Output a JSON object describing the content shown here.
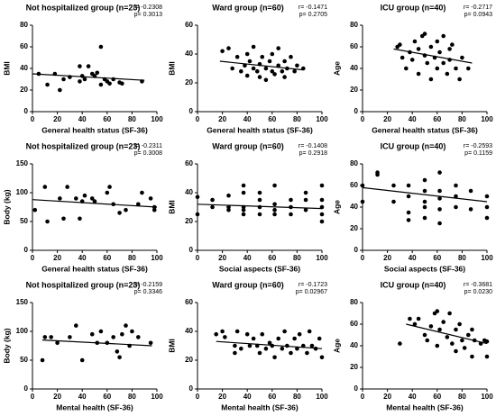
{
  "chart_data": [
    {
      "type": "scatter",
      "title": "Not hospitalized group (n=23)",
      "annotations": [
        "r= -0.2308",
        "p= 0.3013"
      ],
      "xlabel": "General health status (SF-36)",
      "ylabel": "BMI",
      "xlim": [
        0,
        100
      ],
      "ylim": [
        0,
        80
      ],
      "xticks": [
        0,
        20,
        40,
        60,
        80,
        100
      ],
      "yticks": [
        0,
        20,
        40,
        60,
        80
      ],
      "color": "#000000",
      "x": [
        5,
        12,
        18,
        22,
        25,
        30,
        38,
        38,
        40,
        42,
        45,
        48,
        50,
        52,
        55,
        55,
        58,
        60,
        62,
        65,
        70,
        72,
        88
      ],
      "y": [
        35,
        25,
        35,
        20,
        30,
        32,
        28,
        42,
        33,
        30,
        42,
        35,
        33,
        36,
        60,
        25,
        30,
        28,
        26,
        30,
        27,
        26,
        28
      ],
      "fit_x": [
        0,
        90
      ],
      "fit_y": [
        35,
        29
      ]
    },
    {
      "type": "scatter",
      "title": "Ward group (n=60)",
      "annotations": [
        "r= -0.1471",
        "p= 0.2705"
      ],
      "xlabel": "General health status (SF-36)",
      "ylabel": "BMI",
      "xlim": [
        0,
        100
      ],
      "ylim": [
        0,
        60
      ],
      "xticks": [
        0,
        20,
        40,
        60,
        80,
        100
      ],
      "yticks": [
        0,
        20,
        40,
        60
      ],
      "color": "#000000",
      "x": [
        20,
        25,
        28,
        32,
        35,
        38,
        40,
        40,
        42,
        45,
        45,
        48,
        50,
        50,
        52,
        55,
        55,
        58,
        60,
        60,
        62,
        65,
        65,
        68,
        70,
        70,
        72,
        75,
        78,
        80,
        85
      ],
      "y": [
        42,
        44,
        30,
        38,
        28,
        32,
        40,
        25,
        35,
        30,
        45,
        28,
        33,
        24,
        38,
        30,
        22,
        35,
        28,
        40,
        26,
        32,
        44,
        28,
        35,
        24,
        30,
        38,
        28,
        32,
        30
      ],
      "fit_x": [
        18,
        85
      ],
      "fit_y": [
        35,
        29
      ]
    },
    {
      "type": "scatter",
      "title": "ICU group (n=40)",
      "annotations": [
        "r= -0.2717",
        "p= 0.0943"
      ],
      "xlabel": "General health status (SF-36)",
      "ylabel": "Age",
      "xlim": [
        0,
        100
      ],
      "ylim": [
        0,
        80
      ],
      "xticks": [
        0,
        20,
        40,
        60,
        80,
        100
      ],
      "yticks": [
        0,
        20,
        40,
        60,
        80
      ],
      "color": "#000000",
      "x": [
        28,
        30,
        32,
        35,
        38,
        40,
        42,
        45,
        45,
        48,
        50,
        50,
        52,
        55,
        55,
        58,
        60,
        60,
        62,
        65,
        65,
        68,
        70,
        70,
        72,
        75,
        78,
        80,
        85
      ],
      "y": [
        60,
        62,
        50,
        40,
        55,
        48,
        65,
        58,
        35,
        70,
        52,
        72,
        45,
        60,
        30,
        50,
        65,
        40,
        55,
        45,
        70,
        35,
        58,
        48,
        62,
        40,
        30,
        50,
        40
      ],
      "fit_x": [
        25,
        88
      ],
      "fit_y": [
        58,
        45
      ]
    },
    {
      "type": "scatter",
      "title": "Not hospitalized group (n=23)",
      "annotations": [
        "r= -0.2311",
        "p= 0.3008"
      ],
      "xlabel": "General health status (SF-36)",
      "ylabel": "Body (kg)",
      "xlim": [
        0,
        100
      ],
      "ylim": [
        0,
        150
      ],
      "xticks": [
        0,
        20,
        40,
        60,
        80,
        100
      ],
      "yticks": [
        0,
        50,
        100,
        150
      ],
      "color": "#000000",
      "x": [
        2,
        10,
        12,
        22,
        25,
        28,
        35,
        38,
        40,
        42,
        48,
        50,
        60,
        62,
        65,
        70,
        75,
        85,
        88,
        95,
        98,
        98
      ],
      "y": [
        70,
        110,
        50,
        90,
        55,
        110,
        90,
        55,
        85,
        95,
        90,
        85,
        100,
        110,
        80,
        65,
        70,
        80,
        100,
        90,
        75,
        70
      ],
      "fit_x": [
        0,
        100
      ],
      "fit_y": [
        88,
        75
      ]
    },
    {
      "type": "scatter",
      "title": "Ward group (n=60)",
      "annotations": [
        "r= -0.1408",
        "p= 0.2918"
      ],
      "xlabel": "Social aspects (SF-36)",
      "ylabel": "BMI",
      "xlim": [
        0,
        100
      ],
      "ylim": [
        0,
        60
      ],
      "xticks": [
        0,
        20,
        40,
        60,
        80,
        100
      ],
      "yticks": [
        0,
        20,
        40,
        60
      ],
      "color": "#000000",
      "x": [
        0,
        0,
        12,
        12,
        25,
        25,
        25,
        37,
        37,
        37,
        37,
        37,
        50,
        50,
        50,
        50,
        62,
        62,
        62,
        62,
        75,
        75,
        75,
        87,
        87,
        87,
        100,
        100,
        100,
        100,
        100
      ],
      "y": [
        25,
        37,
        35,
        30,
        30,
        38,
        28,
        25,
        40,
        30,
        45,
        28,
        35,
        30,
        25,
        40,
        32,
        28,
        45,
        25,
        30,
        35,
        25,
        35,
        28,
        40,
        30,
        25,
        45,
        35,
        20
      ],
      "fit_x": [
        0,
        100
      ],
      "fit_y": [
        32,
        29
      ]
    },
    {
      "type": "scatter",
      "title": "ICU group (n=40)",
      "annotations": [
        "r= -0.2593",
        "p= 0.1159"
      ],
      "xlabel": "Social aspects (SF-36)",
      "ylabel": "Age",
      "xlim": [
        0,
        100
      ],
      "ylim": [
        0,
        80
      ],
      "xticks": [
        0,
        20,
        40,
        60,
        80,
        100
      ],
      "yticks": [
        0,
        20,
        40,
        60,
        80
      ],
      "color": "#000000",
      "x": [
        0,
        0,
        12,
        12,
        25,
        25,
        37,
        37,
        37,
        37,
        50,
        50,
        50,
        50,
        50,
        62,
        62,
        62,
        62,
        62,
        75,
        75,
        75,
        87,
        87,
        100,
        100,
        100
      ],
      "y": [
        60,
        45,
        70,
        72,
        60,
        45,
        50,
        35,
        28,
        60,
        55,
        45,
        65,
        40,
        30,
        72,
        55,
        48,
        38,
        25,
        60,
        50,
        40,
        55,
        38,
        50,
        40,
        30
      ],
      "fit_x": [
        0,
        100
      ],
      "fit_y": [
        58,
        45
      ]
    },
    {
      "type": "scatter",
      "title": "Not hospitalized group (n=23)",
      "annotations": [
        "r= -0.2159",
        "p= 0.3346"
      ],
      "xlabel": "Mental health (SF-36)",
      "ylabel": "Body (kg)",
      "xlim": [
        0,
        100
      ],
      "ylim": [
        0,
        150
      ],
      "xticks": [
        0,
        20,
        40,
        60,
        80,
        100
      ],
      "yticks": [
        0,
        50,
        100,
        150
      ],
      "color": "#000000",
      "x": [
        8,
        10,
        15,
        20,
        30,
        35,
        40,
        48,
        52,
        55,
        60,
        65,
        68,
        70,
        72,
        75,
        78,
        80,
        85,
        95
      ],
      "y": [
        50,
        90,
        90,
        80,
        90,
        110,
        50,
        95,
        80,
        100,
        80,
        90,
        65,
        55,
        95,
        110,
        75,
        100,
        90,
        80
      ],
      "fit_x": [
        8,
        96
      ],
      "fit_y": [
        85,
        75
      ]
    },
    {
      "type": "scatter",
      "title": "Ward group (n=60)",
      "annotations": [
        "r= -0.1723",
        "p= 0.02967"
      ],
      "xlabel": "Mental health (SF-36)",
      "ylabel": "BMI",
      "xlim": [
        0,
        100
      ],
      "ylim": [
        0,
        60
      ],
      "xticks": [
        0,
        20,
        40,
        60,
        80,
        100
      ],
      "yticks": [
        0,
        20,
        40,
        60
      ],
      "color": "#000000",
      "x": [
        15,
        20,
        22,
        30,
        30,
        32,
        35,
        40,
        42,
        45,
        48,
        50,
        52,
        55,
        58,
        60,
        62,
        65,
        68,
        70,
        72,
        75,
        78,
        80,
        82,
        85,
        88,
        90,
        92,
        95,
        98,
        100
      ],
      "y": [
        38,
        40,
        36,
        30,
        25,
        40,
        28,
        38,
        30,
        35,
        30,
        25,
        38,
        28,
        32,
        30,
        22,
        35,
        28,
        40,
        30,
        25,
        35,
        28,
        38,
        30,
        25,
        40,
        30,
        28,
        35,
        22
      ],
      "fit_x": [
        15,
        100
      ],
      "fit_y": [
        33,
        28
      ]
    },
    {
      "type": "scatter",
      "title": "ICU group (n=40)",
      "annotations": [
        "r= -0.3681",
        "p= 0.0230"
      ],
      "xlabel": "Mental health (SF-36)",
      "ylabel": "Age",
      "xlim": [
        0,
        100
      ],
      "ylim": [
        0,
        80
      ],
      "xticks": [
        0,
        20,
        40,
        60,
        80,
        100
      ],
      "yticks": [
        0,
        20,
        40,
        60,
        80
      ],
      "color": "#000000",
      "x": [
        30,
        38,
        42,
        45,
        50,
        52,
        55,
        58,
        60,
        60,
        62,
        65,
        68,
        70,
        72,
        75,
        75,
        78,
        80,
        82,
        85,
        88,
        88,
        90,
        95,
        98,
        100,
        100
      ],
      "y": [
        42,
        65,
        60,
        65,
        50,
        45,
        58,
        70,
        72,
        40,
        55,
        62,
        48,
        70,
        42,
        55,
        35,
        60,
        45,
        38,
        50,
        55,
        30,
        45,
        42,
        45,
        30,
        44
      ],
      "fit_x": [
        35,
        100
      ],
      "fit_y": [
        60,
        42
      ]
    }
  ]
}
